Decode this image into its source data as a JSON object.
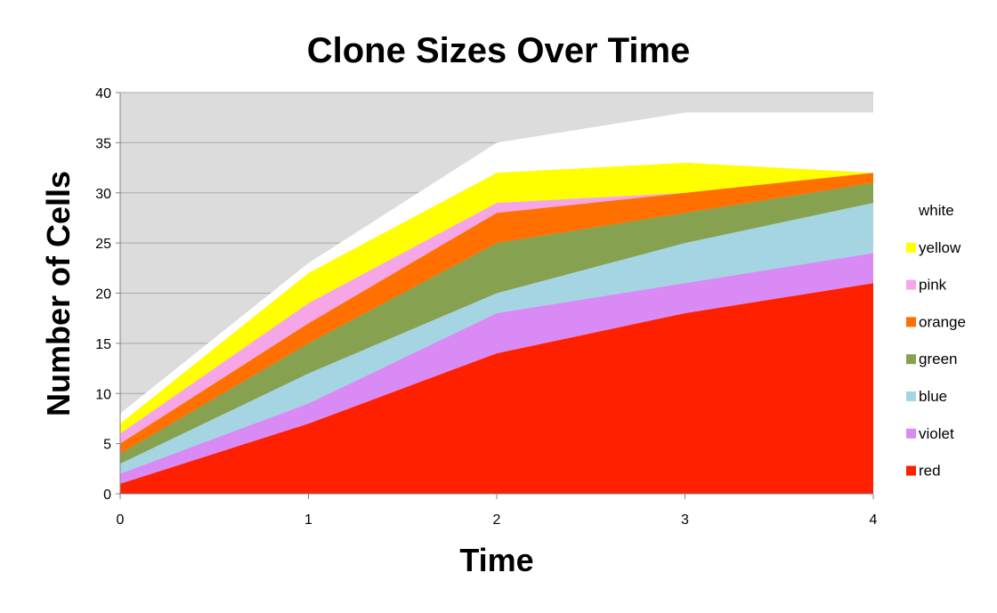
{
  "chart_data": {
    "type": "area",
    "stacked": true,
    "title": "Clone Sizes Over Time",
    "xlabel": "Time",
    "ylabel": "Number of Cells",
    "x": [
      0,
      1,
      2,
      3,
      4
    ],
    "ylim": [
      0,
      40
    ],
    "yticks": [
      0,
      5,
      10,
      15,
      20,
      25,
      30,
      35,
      40
    ],
    "grid": true,
    "plot_background": "#dcdcdc",
    "legend_position": "right",
    "series": [
      {
        "name": "red",
        "color": "#ff2000",
        "values": [
          1,
          7,
          14,
          18,
          21
        ]
      },
      {
        "name": "violet",
        "color": "#d98af5",
        "values": [
          1,
          2,
          4,
          3,
          3
        ]
      },
      {
        "name": "blue",
        "color": "#a5d5e2",
        "values": [
          1,
          3,
          2,
          4,
          5
        ]
      },
      {
        "name": "green",
        "color": "#86a150",
        "values": [
          1,
          3,
          5,
          3,
          2
        ]
      },
      {
        "name": "orange",
        "color": "#ff7000",
        "values": [
          1,
          2,
          3,
          2,
          1
        ]
      },
      {
        "name": "pink",
        "color": "#f6a6e6",
        "values": [
          1,
          2,
          1,
          0,
          0
        ]
      },
      {
        "name": "yellow",
        "color": "#ffff00",
        "values": [
          1,
          3,
          3,
          3,
          0
        ]
      },
      {
        "name": "white",
        "color": "#ffffff",
        "values": [
          1,
          1,
          3,
          5,
          6
        ]
      }
    ]
  }
}
